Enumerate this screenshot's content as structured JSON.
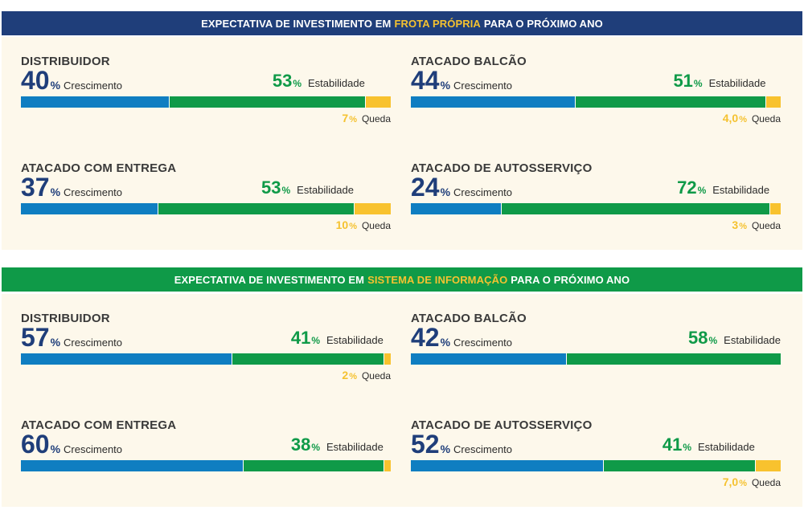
{
  "sections": [
    {
      "title_prefix": "EXPECTATIVA DE INVESTIMENTO EM",
      "title_highlight": "FROTA PRÓPRIA",
      "title_suffix": "PARA O PRÓXIMO ANO",
      "banner_color": "#1f3e7a",
      "blocks": [
        {
          "title": "DISTRIBUIDOR",
          "growth_value": "40",
          "growth_unit": "%",
          "growth_label": "Crescimento",
          "stability_value": "53",
          "stability_unit": "%",
          "stability_label": "Estabilidade",
          "decline_value": "7",
          "decline_unit": "%",
          "decline_label": "Queda"
        },
        {
          "title": "ATACADO BALCÃO",
          "growth_value": "44",
          "growth_unit": "%",
          "growth_label": "Crescimento",
          "stability_value": "51",
          "stability_unit": "%",
          "stability_label": "Estabilidade",
          "decline_value": "4,0",
          "decline_unit": "%",
          "decline_label": "Queda"
        },
        {
          "title": "ATACADO COM ENTREGA",
          "growth_value": "37",
          "growth_unit": "%",
          "growth_label": "Crescimento",
          "stability_value": "53",
          "stability_unit": "%",
          "stability_label": "Estabilidade",
          "decline_value": "10",
          "decline_unit": "%",
          "decline_label": "Queda"
        },
        {
          "title": "ATACADO DE AUTOSSERVIÇO",
          "growth_value": "24",
          "growth_unit": "%",
          "growth_label": "Crescimento",
          "stability_value": "72",
          "stability_unit": "%",
          "stability_label": "Estabilidade",
          "decline_value": "3",
          "decline_unit": "%",
          "decline_label": "Queda"
        }
      ]
    },
    {
      "title_prefix": "EXPECTATIVA DE INVESTIMENTO EM",
      "title_highlight": "SISTEMA DE INFORMAÇÃO",
      "title_suffix": "PARA O PRÓXIMO ANO",
      "banner_color": "#0f9a48",
      "blocks": [
        {
          "title": "DISTRIBUIDOR",
          "growth_value": "57",
          "growth_unit": "%",
          "growth_label": "Crescimento",
          "stability_value": "41",
          "stability_unit": "%",
          "stability_label": "Estabilidade",
          "decline_value": "2",
          "decline_unit": "%",
          "decline_label": "Queda"
        },
        {
          "title": "ATACADO BALCÃO",
          "growth_value": "42",
          "growth_unit": "%",
          "growth_label": "Crescimento",
          "stability_value": "58",
          "stability_unit": "%",
          "stability_label": "Estabilidade"
        },
        {
          "title": "ATACADO COM ENTREGA",
          "growth_value": "60",
          "growth_unit": "%",
          "growth_label": "Crescimento",
          "stability_value": "38",
          "stability_unit": "%",
          "stability_label": "Estabilidade"
        },
        {
          "title": "ATACADO DE AUTOSSERVIÇO",
          "growth_value": "52",
          "growth_unit": "%",
          "growth_label": "Crescimento",
          "stability_value": "41",
          "stability_unit": "%",
          "stability_label": "Estabilidade",
          "decline_value": "7,0",
          "decline_unit": "%",
          "decline_label": "Queda"
        }
      ]
    }
  ],
  "colors": {
    "growth": "#0f7ec1",
    "stability": "#0f9a48",
    "decline": "#f8c22e",
    "highlight": "#f5c230",
    "panel_bg": "#fdf8eb"
  },
  "chart_data": [
    {
      "type": "bar",
      "stacked": true,
      "orientation": "horizontal",
      "title": "DISTRIBUIDOR",
      "categories": [
        "Crescimento",
        "Estabilidade",
        "Queda"
      ],
      "values": [
        40,
        53,
        7
      ],
      "xlim": [
        0,
        100
      ]
    },
    {
      "type": "bar",
      "stacked": true,
      "orientation": "horizontal",
      "title": "ATACADO BALCÃO",
      "categories": [
        "Crescimento",
        "Estabilidade",
        "Queda"
      ],
      "values": [
        44,
        51,
        4.0
      ],
      "xlim": [
        0,
        100
      ]
    },
    {
      "type": "bar",
      "stacked": true,
      "orientation": "horizontal",
      "title": "ATACADO COM ENTREGA",
      "categories": [
        "Crescimento",
        "Estabilidade",
        "Queda"
      ],
      "values": [
        37,
        53,
        10
      ],
      "xlim": [
        0,
        100
      ]
    },
    {
      "type": "bar",
      "stacked": true,
      "orientation": "horizontal",
      "title": "ATACADO DE AUTOSSERVIÇO",
      "categories": [
        "Crescimento",
        "Estabilidade",
        "Queda"
      ],
      "values": [
        24,
        72,
        3
      ],
      "xlim": [
        0,
        100
      ]
    },
    {
      "type": "bar",
      "stacked": true,
      "orientation": "horizontal",
      "title": "DISTRIBUIDOR",
      "categories": [
        "Crescimento",
        "Estabilidade",
        "Queda"
      ],
      "values": [
        57,
        41,
        2
      ],
      "xlim": [
        0,
        100
      ]
    },
    {
      "type": "bar",
      "stacked": true,
      "orientation": "horizontal",
      "title": "ATACADO BALCÃO",
      "categories": [
        "Crescimento",
        "Estabilidade"
      ],
      "values": [
        42,
        58
      ],
      "xlim": [
        0,
        100
      ]
    },
    {
      "type": "bar",
      "stacked": true,
      "orientation": "horizontal",
      "title": "ATACADO COM ENTREGA",
      "categories": [
        "Crescimento",
        "Estabilidade",
        "Queda"
      ],
      "values": [
        60,
        38,
        2
      ],
      "xlim": [
        0,
        100
      ]
    },
    {
      "type": "bar",
      "stacked": true,
      "orientation": "horizontal",
      "title": "ATACADO DE AUTOSSERVIÇO",
      "categories": [
        "Crescimento",
        "Estabilidade",
        "Queda"
      ],
      "values": [
        52,
        41,
        7.0
      ],
      "xlim": [
        0,
        100
      ]
    }
  ]
}
